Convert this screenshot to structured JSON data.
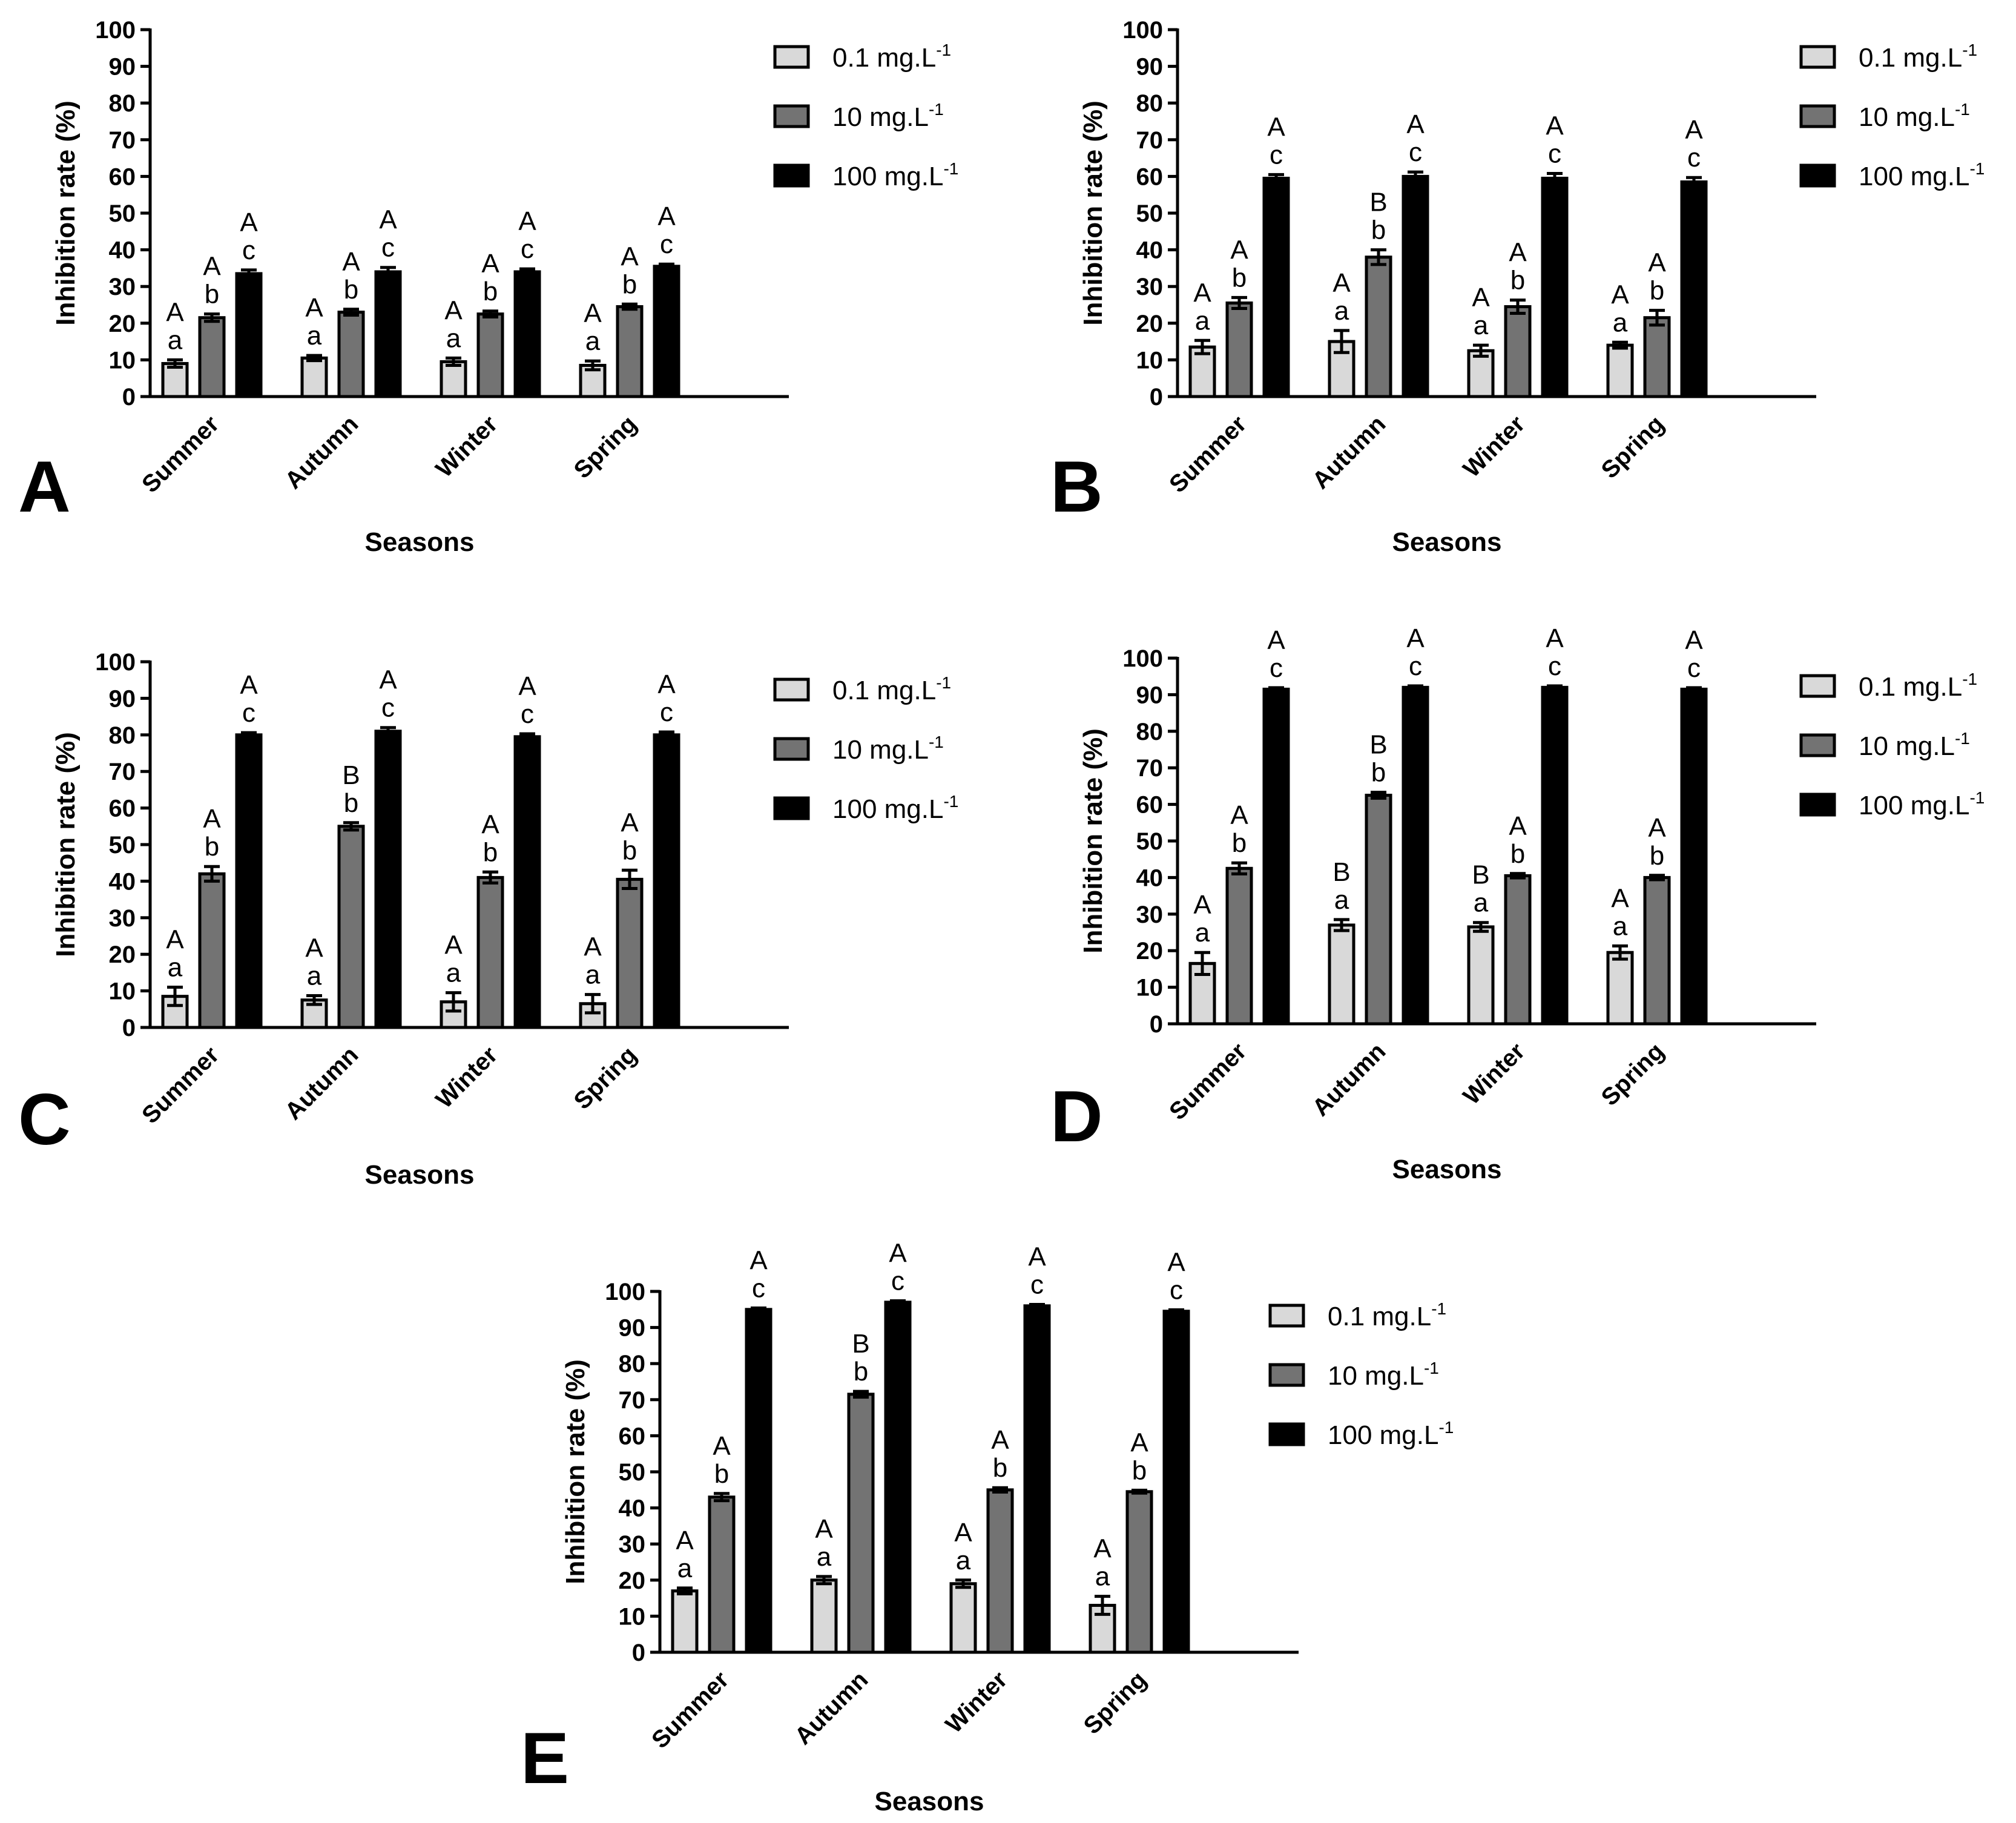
{
  "chart_data": [
    {
      "panel": "A",
      "type": "bar",
      "title": "",
      "xlabel": "Seasons",
      "ylabel": "Inhibition rate (%)",
      "ylim": [
        0,
        100
      ],
      "yticks": [
        "0",
        "10",
        "20",
        "30",
        "40",
        "50",
        "60",
        "70",
        "80",
        "90",
        "100"
      ],
      "categories": [
        "Summer",
        "Autumn",
        "Winter",
        "Spring"
      ],
      "series": [
        {
          "name": "0.1 mg.L",
          "sup": "-1",
          "color": "#d9d9d9",
          "values": [
            9,
            10.5,
            9.5,
            8.5
          ],
          "errors": [
            1,
            0.7,
            1,
            1.2
          ],
          "labels": [
            [
              "A",
              "a"
            ],
            [
              "A",
              "a"
            ],
            [
              "A",
              "a"
            ],
            [
              "A",
              "a"
            ]
          ]
        },
        {
          "name": "10 mg.L",
          "sup": "-1",
          "color": "#737373",
          "values": [
            21.5,
            23,
            22.5,
            24.5
          ],
          "errors": [
            1,
            0.8,
            0.8,
            0.7
          ],
          "labels": [
            [
              "A",
              "b"
            ],
            [
              "A",
              "b"
            ],
            [
              "A",
              "b"
            ],
            [
              "A",
              "b"
            ]
          ]
        },
        {
          "name": "100 mg.L",
          "sup": "-1",
          "color": "#000000",
          "values": [
            33.5,
            34,
            34,
            35.5
          ],
          "errors": [
            1,
            1.2,
            0.8,
            0.6
          ],
          "labels": [
            [
              "A",
              "c"
            ],
            [
              "A",
              "c"
            ],
            [
              "A",
              "c"
            ],
            [
              "A",
              "c"
            ]
          ]
        }
      ]
    },
    {
      "panel": "B",
      "type": "bar",
      "title": "",
      "xlabel": "Seasons",
      "ylabel": "Inhibition rate (%)",
      "ylim": [
        0,
        100
      ],
      "yticks": [
        "0",
        "10",
        "20",
        "30",
        "40",
        "50",
        "60",
        "70",
        "80",
        "90",
        "100"
      ],
      "categories": [
        "Summer",
        "Autumn",
        "Winter",
        "Spring"
      ],
      "series": [
        {
          "name": "0.1 mg.L",
          "sup": "-1",
          "color": "#d9d9d9",
          "values": [
            13.5,
            15,
            12.5,
            14
          ],
          "errors": [
            1.8,
            3,
            1.5,
            0.8
          ],
          "labels": [
            [
              "A",
              "a"
            ],
            [
              "A",
              "a"
            ],
            [
              "A",
              "a"
            ],
            [
              "A",
              "a"
            ]
          ]
        },
        {
          "name": "10 mg.L",
          "sup": "-1",
          "color": "#737373",
          "values": [
            25.5,
            38,
            24.5,
            21.5
          ],
          "errors": [
            1.5,
            2,
            1.8,
            2
          ],
          "labels": [
            [
              "A",
              "b"
            ],
            [
              "B",
              "b"
            ],
            [
              "A",
              "b"
            ],
            [
              "A",
              "b"
            ]
          ]
        },
        {
          "name": "100 mg.L",
          "sup": "-1",
          "color": "#000000",
          "values": [
            59.5,
            60,
            59.5,
            58.5
          ],
          "errors": [
            1,
            1.2,
            1.3,
            1.2
          ],
          "labels": [
            [
              "A",
              "c"
            ],
            [
              "A",
              "c"
            ],
            [
              "A",
              "c"
            ],
            [
              "A",
              "c"
            ]
          ]
        }
      ]
    },
    {
      "panel": "C",
      "type": "bar",
      "title": "",
      "xlabel": "Seasons",
      "ylabel": "Inhibition rate (%)",
      "ylim": [
        0,
        100
      ],
      "yticks": [
        "0",
        "10",
        "20",
        "30",
        "40",
        "50",
        "60",
        "70",
        "80",
        "90",
        "100"
      ],
      "categories": [
        "Summer",
        "Autumn",
        "Winter",
        "Spring"
      ],
      "series": [
        {
          "name": "0.1 mg.L",
          "sup": "-1",
          "color": "#d9d9d9",
          "values": [
            8.5,
            7.5,
            7,
            6.5
          ],
          "errors": [
            2.5,
            1.2,
            2.5,
            2.5
          ],
          "labels": [
            [
              "A",
              "a"
            ],
            [
              "A",
              "a"
            ],
            [
              "A",
              "a"
            ],
            [
              "A",
              "a"
            ]
          ]
        },
        {
          "name": "10 mg.L",
          "sup": "-1",
          "color": "#737373",
          "values": [
            42,
            55,
            41,
            40.5
          ],
          "errors": [
            2,
            1,
            1.5,
            2.5
          ],
          "labels": [
            [
              "A",
              "b"
            ],
            [
              "B",
              "b"
            ],
            [
              "A",
              "b"
            ],
            [
              "A",
              "b"
            ]
          ]
        },
        {
          "name": "100 mg.L",
          "sup": "-1",
          "color": "#000000",
          "values": [
            80,
            81,
            79.5,
            80
          ],
          "errors": [
            0.6,
            1,
            0.8,
            0.8
          ],
          "labels": [
            [
              "A",
              "c"
            ],
            [
              "A",
              "c"
            ],
            [
              "A",
              "c"
            ],
            [
              "A",
              "c"
            ]
          ]
        }
      ]
    },
    {
      "panel": "D",
      "type": "bar",
      "title": "",
      "xlabel": "Seasons",
      "ylabel": "Inhibition rate (%)",
      "ylim": [
        0,
        100
      ],
      "yticks": [
        "0",
        "10",
        "20",
        "30",
        "40",
        "50",
        "60",
        "70",
        "80",
        "90",
        "100"
      ],
      "categories": [
        "Summer",
        "Autumn",
        "Winter",
        "Spring"
      ],
      "series": [
        {
          "name": "0.1 mg.L",
          "sup": "-1",
          "color": "#d9d9d9",
          "values": [
            16.5,
            27,
            26.5,
            19.5
          ],
          "errors": [
            3,
            1.5,
            1.2,
            1.8
          ],
          "labels": [
            [
              "A",
              "a"
            ],
            [
              "B",
              "a"
            ],
            [
              "B",
              "a"
            ],
            [
              "A",
              "a"
            ]
          ]
        },
        {
          "name": "10 mg.L",
          "sup": "-1",
          "color": "#737373",
          "values": [
            42.5,
            62.5,
            40.5,
            40
          ],
          "errors": [
            1.5,
            0.8,
            0.6,
            0.6
          ],
          "labels": [
            [
              "A",
              "b"
            ],
            [
              "B",
              "b"
            ],
            [
              "A",
              "b"
            ],
            [
              "A",
              "b"
            ]
          ]
        },
        {
          "name": "100 mg.L",
          "sup": "-1",
          "color": "#000000",
          "values": [
            91.5,
            92,
            92,
            91.5
          ],
          "errors": [
            0.4,
            0.4,
            0.4,
            0.4
          ],
          "labels": [
            [
              "A",
              "c"
            ],
            [
              "A",
              "c"
            ],
            [
              "A",
              "c"
            ],
            [
              "A",
              "c"
            ]
          ]
        }
      ]
    },
    {
      "panel": "E",
      "type": "bar",
      "title": "",
      "xlabel": "Seasons",
      "ylabel": "Inhibition rate (%)",
      "ylim": [
        0,
        100
      ],
      "yticks": [
        "0",
        "10",
        "20",
        "30",
        "40",
        "50",
        "60",
        "70",
        "80",
        "90",
        "100"
      ],
      "categories": [
        "Summer",
        "Autumn",
        "Winter",
        "Spring"
      ],
      "series": [
        {
          "name": "0.1 mg.L",
          "sup": "-1",
          "color": "#d9d9d9",
          "values": [
            17,
            20,
            19,
            13
          ],
          "errors": [
            0.8,
            1,
            1,
            2.5
          ],
          "labels": [
            [
              "A",
              "a"
            ],
            [
              "A",
              "a"
            ],
            [
              "A",
              "a"
            ],
            [
              "A",
              "a"
            ]
          ]
        },
        {
          "name": "10 mg.L",
          "sup": "-1",
          "color": "#737373",
          "values": [
            43,
            71.5,
            45,
            44.5
          ],
          "errors": [
            1,
            0.8,
            0.6,
            0.4
          ],
          "labels": [
            [
              "A",
              "b"
            ],
            [
              "B",
              "b"
            ],
            [
              "A",
              "b"
            ],
            [
              "A",
              "b"
            ]
          ]
        },
        {
          "name": "100 mg.L",
          "sup": "-1",
          "color": "#000000",
          "values": [
            95,
            97,
            96,
            94.5
          ],
          "errors": [
            0.4,
            0.4,
            0.4,
            0.4
          ],
          "labels": [
            [
              "A",
              "c"
            ],
            [
              "A",
              "c"
            ],
            [
              "A",
              "c"
            ],
            [
              "A",
              "c"
            ]
          ]
        }
      ]
    }
  ]
}
